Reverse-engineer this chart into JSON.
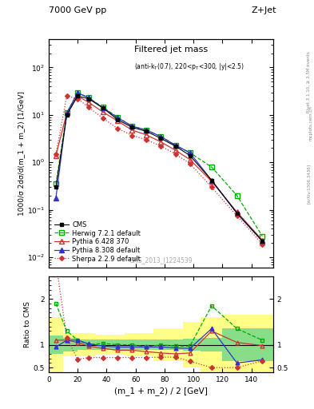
{
  "title_top": "7000 GeV pp",
  "title_right": "Z+Jet",
  "plot_title": "Filtered jet mass",
  "plot_subtitle": "(anti-k_{T}(0.7), 220<p_{T}<300, |y|<2.5)",
  "xlabel": "(m_1 + m_2) / 2 [GeV]",
  "ylabel_main": "1000/σ 2dσ/d(m_1 + m_2) [1/GeV]",
  "ylabel_ratio": "Ratio to CMS",
  "watermark": "CMS_2013_I1224539",
  "rivet_label": "Rivet 3.1.10, ≥ 3.5M events",
  "arxiv_label": "[arXiv:1306.3436]",
  "mcplots_label": "mcplots.cern.ch",
  "x_data": [
    5,
    12.5,
    20,
    27.5,
    37.5,
    47.5,
    57.5,
    67.5,
    77.5,
    87.5,
    97.5,
    112.5,
    130,
    147.5
  ],
  "cms_y": [
    0.3,
    10.0,
    25.0,
    22.0,
    14.0,
    8.0,
    5.5,
    4.5,
    3.2,
    2.2,
    1.4,
    0.42,
    0.085,
    0.022
  ],
  "herwig_y": [
    0.35,
    11.0,
    30.0,
    23.0,
    14.5,
    9.0,
    5.8,
    4.8,
    3.5,
    2.3,
    1.6,
    0.8,
    0.2,
    0.028
  ],
  "pythia6_y": [
    1.4,
    11.0,
    25.0,
    18.5,
    11.5,
    7.5,
    4.8,
    3.8,
    2.7,
    1.8,
    1.15,
    0.4,
    0.09,
    0.023
  ],
  "pythia8_y": [
    0.18,
    11.0,
    29.0,
    23.0,
    14.0,
    8.8,
    5.8,
    4.8,
    3.5,
    2.3,
    1.6,
    0.42,
    0.085,
    0.022
  ],
  "sherpa_y": [
    1.5,
    25.0,
    22.0,
    14.5,
    8.5,
    5.2,
    3.7,
    3.0,
    2.2,
    1.5,
    0.95,
    0.3,
    0.075,
    0.019
  ],
  "herwig_ratio": [
    1.9,
    1.3,
    1.1,
    1.0,
    1.03,
    1.0,
    1.0,
    0.95,
    1.0,
    0.97,
    0.97,
    1.85,
    1.35,
    1.1
  ],
  "pythia6_ratio": [
    1.1,
    1.1,
    1.05,
    0.97,
    0.92,
    0.88,
    0.88,
    0.85,
    0.82,
    0.8,
    0.82,
    1.3,
    1.05,
    0.98
  ],
  "pythia8_ratio": [
    0.95,
    1.1,
    1.1,
    1.02,
    0.97,
    0.95,
    0.95,
    0.95,
    0.95,
    0.93,
    0.92,
    1.35,
    0.6,
    0.67
  ],
  "sherpa_ratio": [
    2.8,
    1.15,
    0.68,
    0.72,
    0.72,
    0.72,
    0.72,
    0.72,
    0.73,
    0.73,
    0.64,
    0.5,
    0.5,
    0.65
  ],
  "cms_color": "#000000",
  "herwig_color": "#00aa00",
  "pythia6_color": "#cc3333",
  "pythia8_color": "#3333cc",
  "sherpa_color": "#cc3333",
  "bg_color": "#ffffff",
  "xlim": [
    0,
    155
  ],
  "ylim_main_lo": 0.006,
  "ylim_main_hi": 400,
  "ylim_ratio_lo": 0.4,
  "ylim_ratio_hi": 2.5,
  "band_edges": [
    0,
    10,
    20,
    32.5,
    52.5,
    72.5,
    92.5,
    105,
    120,
    140,
    155
  ],
  "green_half": [
    0.2,
    0.15,
    0.12,
    0.12,
    0.12,
    0.12,
    0.13,
    0.15,
    0.35,
    0.35
  ],
  "yellow_half": [
    0.6,
    0.25,
    0.25,
    0.22,
    0.25,
    0.35,
    0.5,
    0.6,
    0.65,
    0.65
  ]
}
